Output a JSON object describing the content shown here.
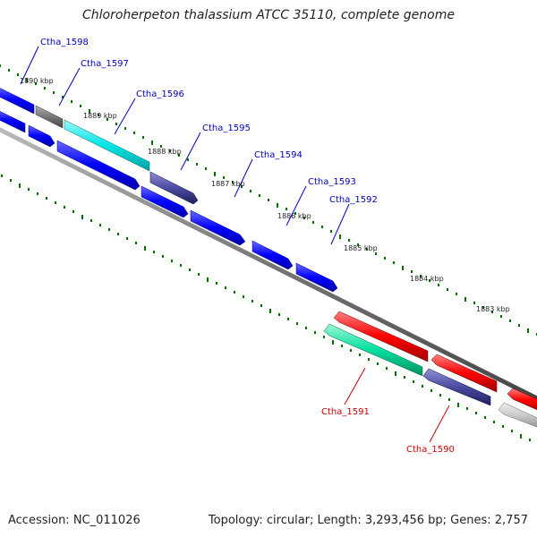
{
  "title": "Chloroherpeton thalassium ATCC 35110, complete genome",
  "accession": "Accession: NC_011026",
  "summary": "Topology: circular; Length: 3,293,456 bp; Genes: 2,757",
  "ruler_labels": [
    "1890 kbp",
    "1889 kbp",
    "1888 kbp",
    "1887 kbp",
    "1886 kbp",
    "1885 kbp",
    "1884 kbp",
    "1883 kbp"
  ],
  "genes": [
    {
      "name": "Ctha_1598",
      "strand": "forward",
      "color": "#0000ff"
    },
    {
      "name": "Ctha_1597",
      "strand": "forward",
      "color": "#0000ff"
    },
    {
      "name": "Ctha_1596",
      "strand": "forward",
      "color": "#0000ff"
    },
    {
      "name": "Ctha_1595",
      "strand": "forward",
      "color": "#0000ff"
    },
    {
      "name": "Ctha_1594",
      "strand": "forward",
      "color": "#0000ff"
    },
    {
      "name": "Ctha_1593",
      "strand": "forward",
      "color": "#0000ff"
    },
    {
      "name": "Ctha_1592",
      "strand": "forward",
      "color": "#0000ff"
    },
    {
      "name": "Ctha_1591",
      "strand": "reverse",
      "color": "#cc0000"
    },
    {
      "name": "Ctha_1590",
      "strand": "reverse",
      "color": "#cc0000"
    }
  ],
  "colors": {
    "forward_label": "#0000bb",
    "reverse_label": "#cc0000",
    "blue": "#0000ff",
    "cyan": "#00e5e5",
    "grey": "#777777",
    "purple": "#4a4aa0",
    "red": "#ff0000",
    "green": "#00e0a0",
    "lightgrey": "#c8c8c8",
    "tick": "#007000",
    "backbone": "#777777"
  }
}
